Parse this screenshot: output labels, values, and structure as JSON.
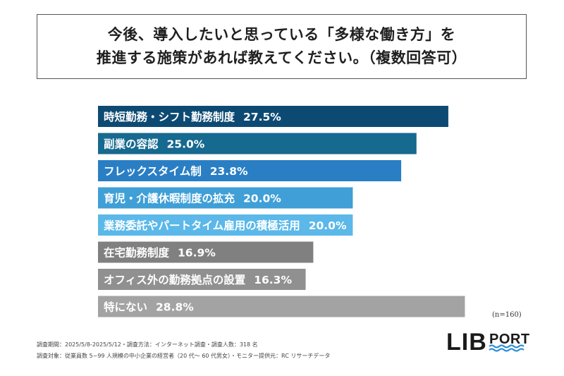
{
  "title": {
    "line1": "今後、導入したいと思っている「多様な働き方」を",
    "line2": "推進する施策があれば教えてください。（複数回答可）"
  },
  "chart_data": {
    "type": "bar",
    "orientation": "horizontal",
    "categories": [
      "時短勤務・シフト勤務制度",
      "副業の容認",
      "フレックスタイム制",
      "育児・介護休暇制度の拡充",
      "業務委託やパートタイム雇用の積極活用",
      "在宅勤務制度",
      "オフィス外の勤務拠点の設置",
      "特にない"
    ],
    "values": [
      27.5,
      25.0,
      23.8,
      20.0,
      20.0,
      16.9,
      16.3,
      28.8
    ],
    "value_labels": [
      "27.5%",
      "25.0%",
      "23.8%",
      "20.0%",
      "20.0%",
      "16.9%",
      "16.3%",
      "28.8%"
    ],
    "colors": [
      "#0d4a73",
      "#16698f",
      "#2a7fc4",
      "#3f9fd6",
      "#5bb8e8",
      "#808080",
      "#909090",
      "#a3a3a3"
    ],
    "xlim": [
      0,
      30
    ],
    "grid": false,
    "legend": "none"
  },
  "sample_size": "(n=160)",
  "footnotes": {
    "line1": "調査期間：2025/5/8-2025/5/12・調査方法：インターネット調査・調査人数：318 名",
    "line2": "調査対象：従業員数 5~99 人規模の中小企業の経営者（20 代～ 60 代男女）・モニター提供元：RC リサーチデータ"
  },
  "logo": {
    "left": "LIB",
    "right": "PORT",
    "color": "#1a1a1a",
    "wave_color": "#2b8fd4"
  }
}
